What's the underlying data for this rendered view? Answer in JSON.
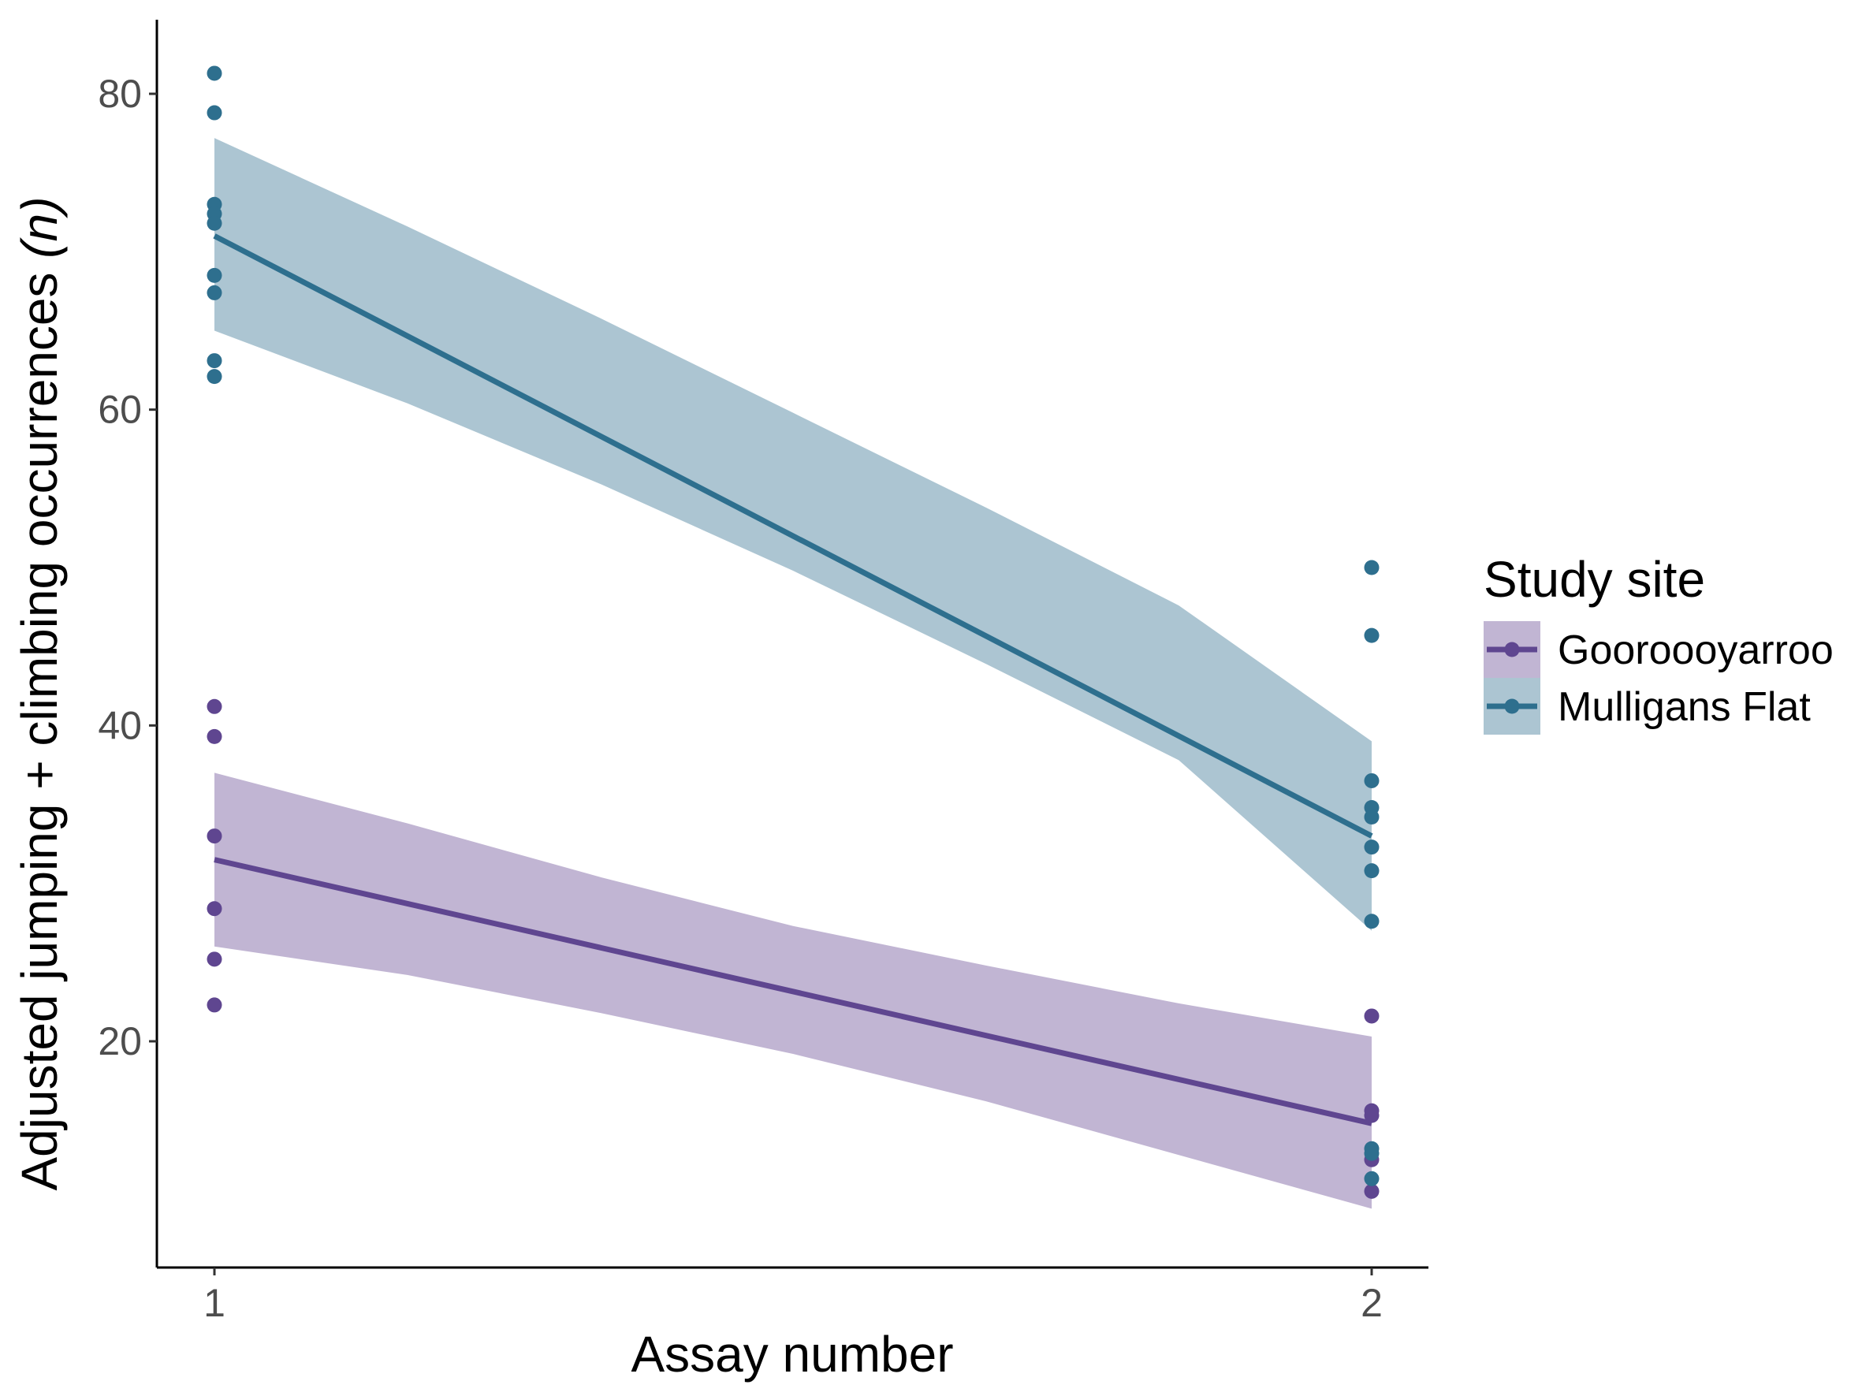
{
  "chart_data": {
    "type": "scatter",
    "title": "",
    "xlabel": "Assay number",
    "ylabel_main": "Adjusted jumping + climbing occurrences ",
    "ylabel_italic": "(n)",
    "x_ticks": [
      "1",
      "2"
    ],
    "y_ticks": [
      "20",
      "40",
      "60",
      "80"
    ],
    "xlim": [
      0.95,
      2.05
    ],
    "ylim": [
      5,
      85
    ],
    "grid": false,
    "legend": {
      "title": "Study site",
      "placement": "right"
    },
    "series": [
      {
        "name": "Gooroooyarroo",
        "color": "#5f4690",
        "fill": "#c1b5d3",
        "fit": {
          "x": [
            1,
            2
          ],
          "y": [
            31.5,
            14.8
          ]
        },
        "ci_lower": [
          26,
          24.2,
          21.8,
          19.2,
          16.2,
          12.8,
          9.4
        ],
        "ci_upper": [
          37,
          33.8,
          30.4,
          27.3,
          24.8,
          22.4,
          20.3
        ],
        "points": [
          [
            1,
            41.2
          ],
          [
            1,
            39.3
          ],
          [
            1,
            33
          ],
          [
            1,
            28.4
          ],
          [
            1,
            25.2
          ],
          [
            1,
            22.3
          ],
          [
            2,
            21.6
          ],
          [
            2,
            15.6
          ],
          [
            2,
            15.3
          ],
          [
            2,
            12.5
          ],
          [
            2,
            10.5
          ]
        ]
      },
      {
        "name": "Mulligans Flat",
        "color": "#2e6f8e",
        "fill": "#acc5d2",
        "fit": {
          "x": [
            1,
            2
          ],
          "y": [
            71,
            33
          ]
        },
        "ci_lower": [
          65,
          60.4,
          55.3,
          49.8,
          43.9,
          37.8,
          27
        ],
        "ci_upper": [
          77.2,
          71.6,
          65.8,
          59.8,
          53.8,
          47.6,
          39
        ],
        "points": [
          [
            1,
            81.3
          ],
          [
            1,
            78.8
          ],
          [
            1,
            73
          ],
          [
            1,
            72.4
          ],
          [
            1,
            71.8
          ],
          [
            1,
            68.5
          ],
          [
            1,
            67.4
          ],
          [
            1,
            63.1
          ],
          [
            1,
            62.1
          ],
          [
            2,
            50
          ],
          [
            2,
            45.7
          ],
          [
            2,
            36.5
          ],
          [
            2,
            34.8
          ],
          [
            2,
            34.2
          ],
          [
            2,
            32.3
          ],
          [
            2,
            30.8
          ],
          [
            2,
            27.6
          ],
          [
            2,
            13.2
          ],
          [
            2,
            12.9
          ],
          [
            2,
            11.3
          ]
        ]
      }
    ],
    "ci_x": [
      1,
      1.1667,
      1.3333,
      1.5,
      1.6667,
      1.8333,
      2
    ]
  }
}
